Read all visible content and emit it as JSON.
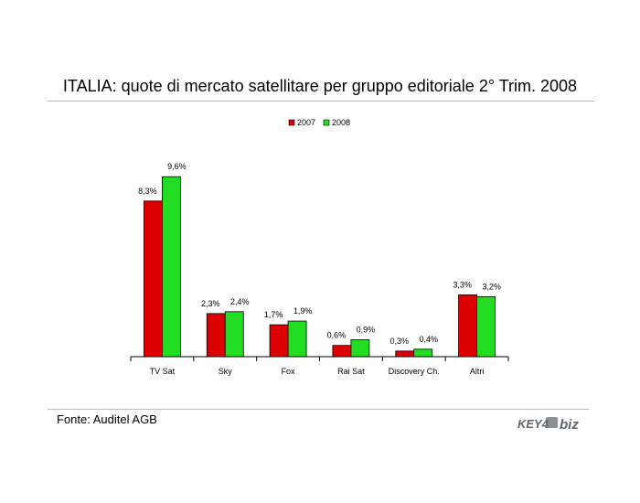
{
  "title": "ITALIA: quote di mercato satellitare per gruppo editoriale 2° Trim. 2008",
  "source": "Fonte: Auditel AGB",
  "logo": {
    "text_left": "KEY4",
    "text_right": "biz"
  },
  "colors": {
    "series_2007": "#dd0000",
    "series_2008": "#22dd22",
    "rule": "#b9b9b9"
  },
  "chart_data": {
    "type": "bar",
    "title": "ITALIA: quote di mercato satellitare per gruppo editoriale 2° Trim. 2008",
    "xlabel": "",
    "ylabel": "",
    "ylim": [
      0,
      10
    ],
    "grid": false,
    "legend_position": "top-center",
    "categories": [
      "TV Sat",
      "Sky",
      "Fox",
      "Rai Sat",
      "Discovery Ch.",
      "Altri"
    ],
    "series": [
      {
        "name": "2007",
        "color": "#dd0000",
        "values": [
          8.3,
          2.3,
          1.7,
          0.6,
          0.3,
          3.3
        ],
        "labels": [
          "8,3%",
          "2,3%",
          "1,7%",
          "0,6%",
          "0,3%",
          "3,3%"
        ]
      },
      {
        "name": "2008",
        "color": "#22dd22",
        "values": [
          9.6,
          2.4,
          1.9,
          0.9,
          0.4,
          3.2
        ],
        "labels": [
          "9,6%",
          "2,4%",
          "1,9%",
          "0,9%",
          "0,4%",
          "3,2%"
        ]
      }
    ]
  }
}
